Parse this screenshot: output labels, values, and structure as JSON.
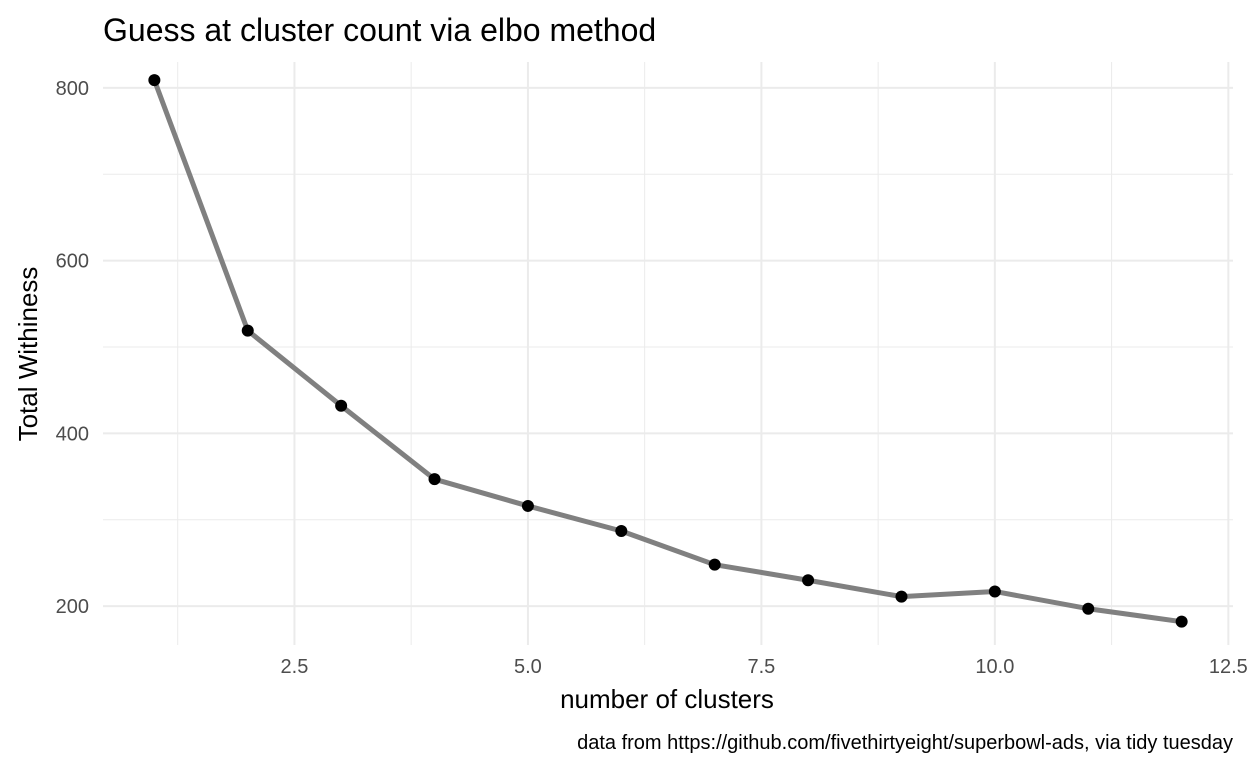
{
  "chart_data": {
    "type": "line",
    "title": "Guess at cluster count via elbo method",
    "xlabel": "number of clusters",
    "ylabel": "Total Withiness",
    "caption": "data from https://github.com/fivethirtyeight/superbowl-ads, via tidy tuesday",
    "xlim": [
      0.45,
      12.55
    ],
    "ylim": [
      155,
      830
    ],
    "x_ticks": [
      2.5,
      5.0,
      7.5,
      10.0,
      12.5
    ],
    "x_tick_labels": [
      "2.5",
      "5.0",
      "7.5",
      "10.0",
      "12.5"
    ],
    "y_ticks": [
      200,
      400,
      600,
      800
    ],
    "y_tick_labels": [
      "200",
      "400",
      "600",
      "800"
    ],
    "grid": true,
    "series": [
      {
        "x": [
          1,
          2,
          3,
          4,
          5,
          6,
          7,
          8,
          9,
          10,
          11,
          12
        ],
        "values": [
          809,
          519,
          432,
          347,
          316,
          287,
          248,
          230,
          211,
          217,
          197,
          182
        ]
      }
    ],
    "colors": {
      "line": "#808080",
      "point": "#000000",
      "grid": "#ebebeb"
    }
  }
}
